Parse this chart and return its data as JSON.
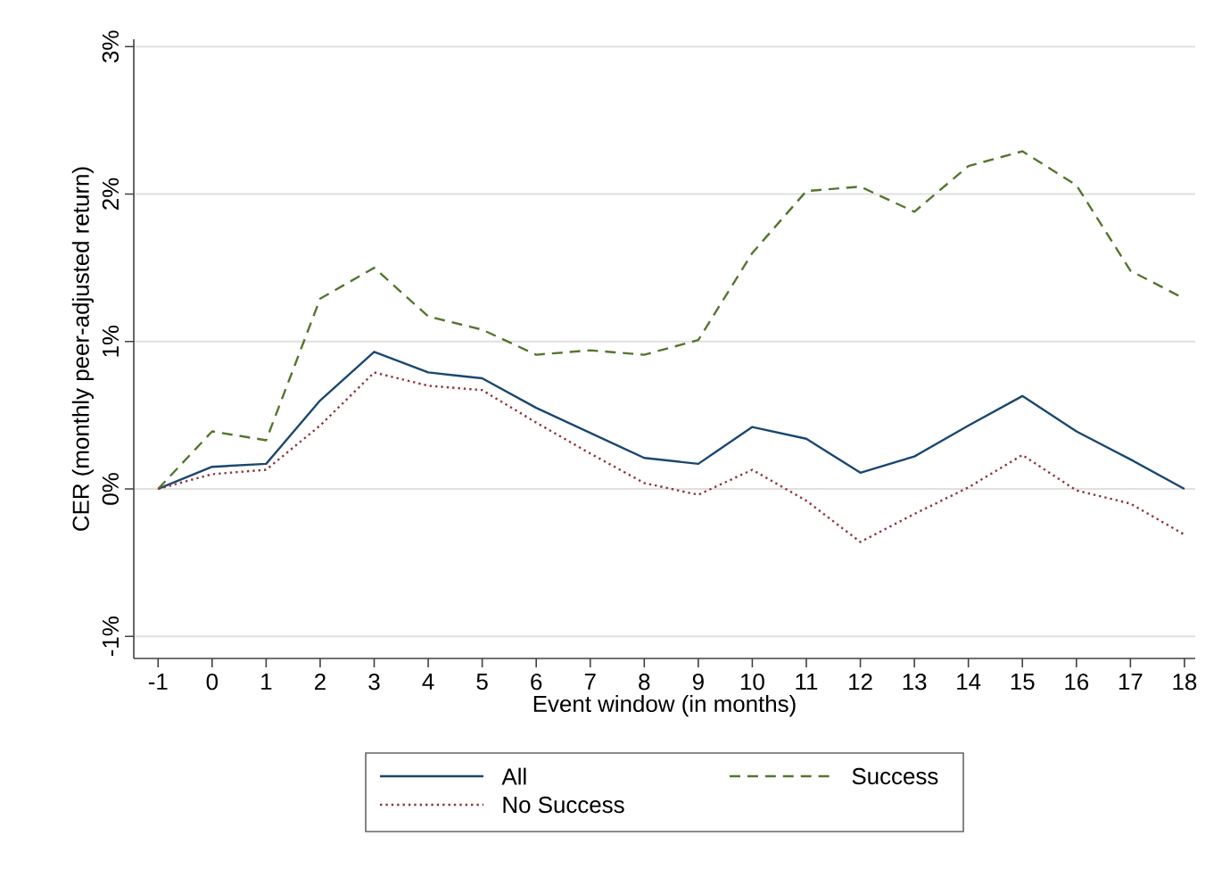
{
  "chart_data": {
    "type": "line",
    "xlabel": "Event window (in months)",
    "ylabel": "CER (monthly peer-adjusted return)",
    "x": [
      -1,
      0,
      1,
      2,
      3,
      4,
      5,
      6,
      7,
      8,
      9,
      10,
      11,
      12,
      13,
      14,
      15,
      16,
      17,
      18
    ],
    "series": [
      {
        "name": "All",
        "color": "#1a476f",
        "line_style": "solid",
        "values": [
          0,
          0.15,
          0.17,
          0.6,
          0.93,
          0.79,
          0.75,
          0.55,
          0.38,
          0.21,
          0.17,
          0.42,
          0.34,
          0.11,
          0.22,
          0.43,
          0.63,
          0.39,
          0.2,
          0
        ]
      },
      {
        "name": "Success",
        "color": "#55752f",
        "line_style": "dashed",
        "values": [
          0,
          0.39,
          0.33,
          1.29,
          1.5,
          1.17,
          1.08,
          0.91,
          0.94,
          0.91,
          1.01,
          1.6,
          2.02,
          2.05,
          1.88,
          2.19,
          2.29,
          2.06,
          1.48,
          1.29
        ]
      },
      {
        "name": "No Success",
        "color": "#90353b",
        "line_style": "dotted",
        "values": [
          0,
          0.1,
          0.13,
          0.43,
          0.79,
          0.7,
          0.67,
          0.45,
          0.24,
          0.04,
          -0.04,
          0.13,
          -0.08,
          -0.36,
          -0.17,
          0.01,
          0.23,
          -0.01,
          -0.1,
          -0.31
        ]
      }
    ],
    "xlim": [
      -1.45,
      18.2
    ],
    "ylim": [
      -1.15,
      3.05
    ],
    "xticks": [
      -1,
      0,
      1,
      2,
      3,
      4,
      5,
      6,
      7,
      8,
      9,
      10,
      11,
      12,
      13,
      14,
      15,
      16,
      17,
      18
    ],
    "yticks": [
      {
        "value": -1,
        "label": "-1%"
      },
      {
        "value": 0,
        "label": "0%"
      },
      {
        "value": 1,
        "label": "1%"
      },
      {
        "value": 2,
        "label": "2%"
      },
      {
        "value": 3,
        "label": "3%"
      }
    ],
    "grid": "y",
    "legend": "bottom"
  }
}
